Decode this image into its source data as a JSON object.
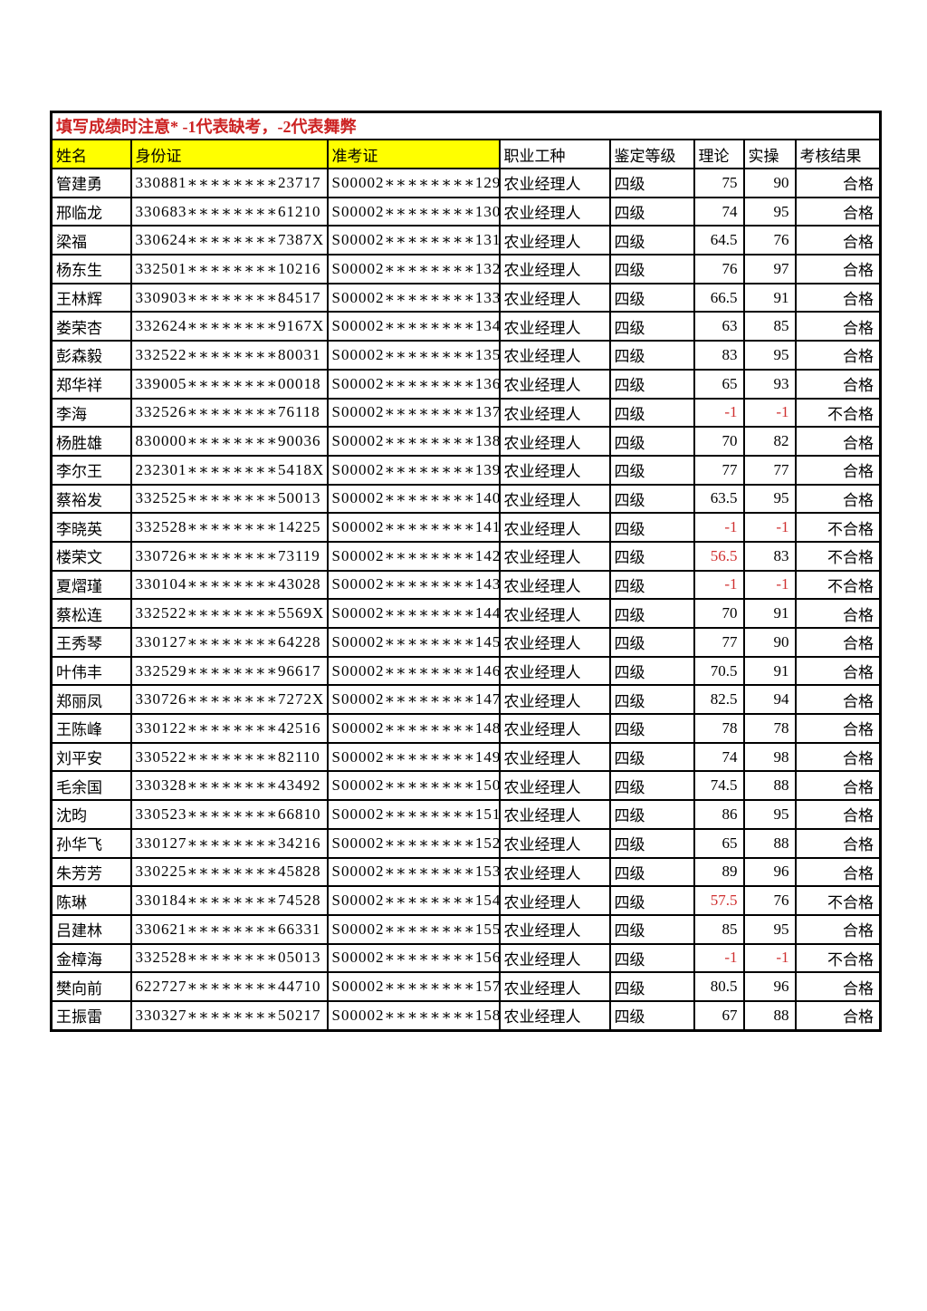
{
  "notice": "填写成绩时注意* -1代表缺考，-2代表舞弊",
  "colors": {
    "notice_red": "#cc2222",
    "score_red": "#d03030",
    "header_yellow": "#ffff00",
    "border": "#000000",
    "page_background": "#ffffff"
  },
  "table": {
    "columns": [
      {
        "key": "name",
        "label": "姓名",
        "yellow": true,
        "align": "left"
      },
      {
        "key": "id_card",
        "label": "身份证",
        "yellow": true,
        "align": "left"
      },
      {
        "key": "exam_ticket",
        "label": "准考证",
        "yellow": true,
        "align": "left"
      },
      {
        "key": "occupation",
        "label": "职业工种",
        "yellow": false,
        "align": "left"
      },
      {
        "key": "level",
        "label": "鉴定等级",
        "yellow": false,
        "align": "left"
      },
      {
        "key": "theory",
        "label": "理论",
        "yellow": false,
        "align": "right"
      },
      {
        "key": "practical",
        "label": "实操",
        "yellow": false,
        "align": "right"
      },
      {
        "key": "result",
        "label": "考核结果",
        "yellow": false,
        "align": "right"
      }
    ],
    "rows": [
      {
        "name": "管建勇",
        "id_card": "330881********23717",
        "exam_ticket": "S00002********129",
        "occupation": "农业经理人",
        "level": "四级",
        "theory": "75",
        "practical": "90",
        "result": "合格",
        "red": []
      },
      {
        "name": "邢临龙",
        "id_card": "330683********61210",
        "exam_ticket": "S00002********130",
        "occupation": "农业经理人",
        "level": "四级",
        "theory": "74",
        "practical": "95",
        "result": "合格",
        "red": []
      },
      {
        "name": "梁福",
        "id_card": "330624********7387X",
        "exam_ticket": "S00002********131",
        "occupation": "农业经理人",
        "level": "四级",
        "theory": "64.5",
        "practical": "76",
        "result": "合格",
        "red": []
      },
      {
        "name": "杨东生",
        "id_card": "332501********10216",
        "exam_ticket": "S00002********132",
        "occupation": "农业经理人",
        "level": "四级",
        "theory": "76",
        "practical": "97",
        "result": "合格",
        "red": []
      },
      {
        "name": "王林辉",
        "id_card": "330903********84517",
        "exam_ticket": "S00002********133",
        "occupation": "农业经理人",
        "level": "四级",
        "theory": "66.5",
        "practical": "91",
        "result": "合格",
        "red": []
      },
      {
        "name": "娄荣杏",
        "id_card": "332624********9167X",
        "exam_ticket": "S00002********134",
        "occupation": "农业经理人",
        "level": "四级",
        "theory": "63",
        "practical": "85",
        "result": "合格",
        "red": []
      },
      {
        "name": "彭森毅",
        "id_card": "332522********80031",
        "exam_ticket": "S00002********135",
        "occupation": "农业经理人",
        "level": "四级",
        "theory": "83",
        "practical": "95",
        "result": "合格",
        "red": []
      },
      {
        "name": "郑华祥",
        "id_card": "339005********00018",
        "exam_ticket": "S00002********136",
        "occupation": "农业经理人",
        "level": "四级",
        "theory": "65",
        "practical": "93",
        "result": "合格",
        "red": []
      },
      {
        "name": "李海",
        "id_card": "332526********76118",
        "exam_ticket": "S00002********137",
        "occupation": "农业经理人",
        "level": "四级",
        "theory": "-1",
        "practical": "-1",
        "result": "不合格",
        "red": [
          "theory",
          "practical"
        ]
      },
      {
        "name": "杨胜雄",
        "id_card": "830000********90036",
        "exam_ticket": "S00002********138",
        "occupation": "农业经理人",
        "level": "四级",
        "theory": "70",
        "practical": "82",
        "result": "合格",
        "red": []
      },
      {
        "name": "李尔王",
        "id_card": "232301********5418X",
        "exam_ticket": "S00002********139",
        "occupation": "农业经理人",
        "level": "四级",
        "theory": "77",
        "practical": "77",
        "result": "合格",
        "red": []
      },
      {
        "name": "蔡裕发",
        "id_card": "332525********50013",
        "exam_ticket": "S00002********140",
        "occupation": "农业经理人",
        "level": "四级",
        "theory": "63.5",
        "practical": "95",
        "result": "合格",
        "red": []
      },
      {
        "name": "李晓英",
        "id_card": "332528********14225",
        "exam_ticket": "S00002********141",
        "occupation": "农业经理人",
        "level": "四级",
        "theory": "-1",
        "practical": "-1",
        "result": "不合格",
        "red": [
          "theory",
          "practical"
        ]
      },
      {
        "name": "楼荣文",
        "id_card": "330726********73119",
        "exam_ticket": "S00002********142",
        "occupation": "农业经理人",
        "level": "四级",
        "theory": "56.5",
        "practical": "83",
        "result": "不合格",
        "red": [
          "theory"
        ]
      },
      {
        "name": "夏熠瑾",
        "id_card": "330104********43028",
        "exam_ticket": "S00002********143",
        "occupation": "农业经理人",
        "level": "四级",
        "theory": "-1",
        "practical": "-1",
        "result": "不合格",
        "red": [
          "theory",
          "practical"
        ]
      },
      {
        "name": "蔡松连",
        "id_card": "332522********5569X",
        "exam_ticket": "S00002********144",
        "occupation": "农业经理人",
        "level": "四级",
        "theory": "70",
        "practical": "91",
        "result": "合格",
        "red": []
      },
      {
        "name": "王秀琴",
        "id_card": "330127********64228",
        "exam_ticket": "S00002********145",
        "occupation": "农业经理人",
        "level": "四级",
        "theory": "77",
        "practical": "90",
        "result": "合格",
        "red": []
      },
      {
        "name": "叶伟丰",
        "id_card": "332529********96617",
        "exam_ticket": "S00002********146",
        "occupation": "农业经理人",
        "level": "四级",
        "theory": "70.5",
        "practical": "91",
        "result": "合格",
        "red": []
      },
      {
        "name": "郑丽凤",
        "id_card": "330726********7272X",
        "exam_ticket": "S00002********147",
        "occupation": "农业经理人",
        "level": "四级",
        "theory": "82.5",
        "practical": "94",
        "result": "合格",
        "red": []
      },
      {
        "name": "王陈峰",
        "id_card": "330122********42516",
        "exam_ticket": "S00002********148",
        "occupation": "农业经理人",
        "level": "四级",
        "theory": "78",
        "practical": "78",
        "result": "合格",
        "red": []
      },
      {
        "name": "刘平安",
        "id_card": "330522********82110",
        "exam_ticket": "S00002********149",
        "occupation": "农业经理人",
        "level": "四级",
        "theory": "74",
        "practical": "98",
        "result": "合格",
        "red": []
      },
      {
        "name": "毛余国",
        "id_card": "330328********43492",
        "exam_ticket": "S00002********150",
        "occupation": "农业经理人",
        "level": "四级",
        "theory": "74.5",
        "practical": "88",
        "result": "合格",
        "red": []
      },
      {
        "name": "沈昀",
        "id_card": "330523********66810",
        "exam_ticket": "S00002********151",
        "occupation": "农业经理人",
        "level": "四级",
        "theory": "86",
        "practical": "95",
        "result": "合格",
        "red": []
      },
      {
        "name": "孙华飞",
        "id_card": "330127********34216",
        "exam_ticket": "S00002********152",
        "occupation": "农业经理人",
        "level": "四级",
        "theory": "65",
        "practical": "88",
        "result": "合格",
        "red": []
      },
      {
        "name": "朱芳芳",
        "id_card": "330225********45828",
        "exam_ticket": "S00002********153",
        "occupation": "农业经理人",
        "level": "四级",
        "theory": "89",
        "practical": "96",
        "result": "合格",
        "red": []
      },
      {
        "name": "陈琳",
        "id_card": "330184********74528",
        "exam_ticket": "S00002********154",
        "occupation": "农业经理人",
        "level": "四级",
        "theory": "57.5",
        "practical": "76",
        "result": "不合格",
        "red": [
          "theory"
        ]
      },
      {
        "name": "吕建林",
        "id_card": "330621********66331",
        "exam_ticket": "S00002********155",
        "occupation": "农业经理人",
        "level": "四级",
        "theory": "85",
        "practical": "95",
        "result": "合格",
        "red": []
      },
      {
        "name": "金樟海",
        "id_card": "332528********05013",
        "exam_ticket": "S00002********156",
        "occupation": "农业经理人",
        "level": "四级",
        "theory": "-1",
        "practical": "-1",
        "result": "不合格",
        "red": [
          "theory",
          "practical"
        ]
      },
      {
        "name": "樊向前",
        "id_card": "622727********44710",
        "exam_ticket": "S00002********157",
        "occupation": "农业经理人",
        "level": "四级",
        "theory": "80.5",
        "practical": "96",
        "result": "合格",
        "red": []
      },
      {
        "name": "王振雷",
        "id_card": "330327********50217",
        "exam_ticket": "S00002********158",
        "occupation": "农业经理人",
        "level": "四级",
        "theory": "67",
        "practical": "88",
        "result": "合格",
        "red": []
      }
    ]
  }
}
